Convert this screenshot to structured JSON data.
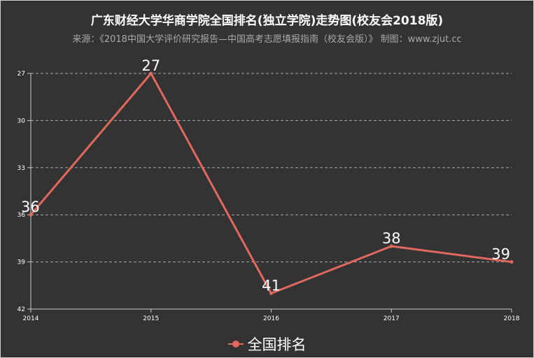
{
  "colors": {
    "background": "#333333",
    "series": "#e0685e",
    "grid": "#aaaaaa",
    "axis": "#cccccc",
    "text": "#ffffff"
  },
  "chart_data": {
    "type": "line",
    "title": "广东财经大学华商学院全国排名(独立学院)走势图(校友会2018版)",
    "subtitle": "来源：《2018中国大学评价研究报告—中国高考志愿填报指南（校友会版）》 制图：www.zjut.cc",
    "categories": [
      "2014",
      "2015",
      "2016",
      "2017",
      "2018"
    ],
    "y_ticks": [
      "27",
      "30",
      "33",
      "36",
      "39",
      "42"
    ],
    "ylim": [
      27,
      42
    ],
    "y_inverted": true,
    "grid": true,
    "legend_position": "bottom",
    "series": [
      {
        "name": "全国排名",
        "values": [
          36,
          27,
          41,
          38,
          39
        ],
        "labels": [
          "36",
          "27",
          "41",
          "38",
          "39"
        ]
      }
    ]
  }
}
